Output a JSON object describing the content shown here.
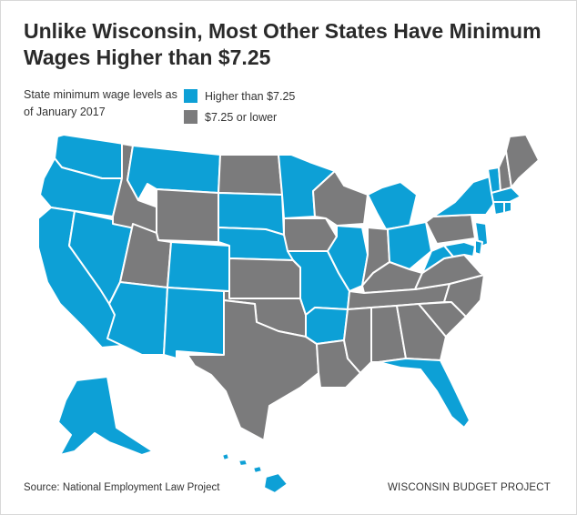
{
  "title": "Unlike Wisconsin, Most Other States Have Minimum Wages Higher than $7.25",
  "subtitle": "State minimum wage levels as of January 2017",
  "legend": [
    {
      "label": "Higher than $7.25",
      "color": "#0da0d6"
    },
    {
      "label": "$7.25 or lower",
      "color": "#7b7b7c"
    }
  ],
  "colors": {
    "higher": "#0da0d6",
    "lower": "#7b7b7c",
    "border": "#ffffff"
  },
  "states": {
    "higher": [
      "WA",
      "OR",
      "CA",
      "NV",
      "AZ",
      "MT",
      "SD",
      "NE",
      "CO",
      "NM",
      "MN",
      "MO",
      "AR",
      "IL",
      "MI",
      "OH",
      "WV",
      "NY",
      "VT",
      "MA",
      "CT",
      "RI",
      "NJ",
      "MD",
      "DE",
      "FL",
      "AK",
      "HI",
      "DC"
    ],
    "lower": [
      "ID",
      "UT",
      "WY",
      "ND",
      "KS",
      "OK",
      "TX",
      "IA",
      "WI",
      "LA",
      "MS",
      "AL",
      "GA",
      "SC",
      "NC",
      "TN",
      "KY",
      "IN",
      "VA",
      "PA",
      "NH",
      "ME"
    ]
  },
  "footer": {
    "source": "Source: National Employment Law Project",
    "brand": "WISCONSIN BUDGET PROJECT"
  }
}
